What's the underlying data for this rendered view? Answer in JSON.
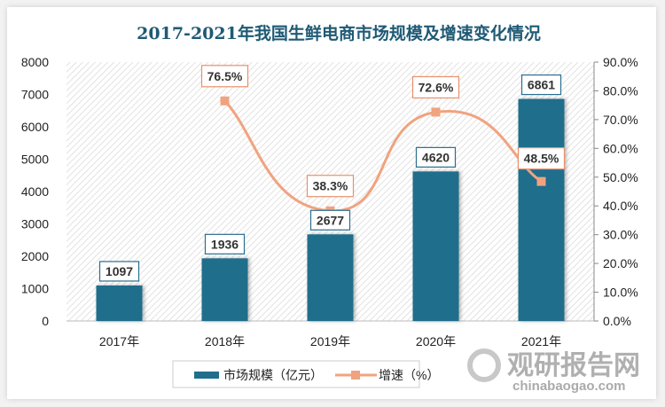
{
  "chart_data": {
    "type": "bar",
    "title": "2017-2021年我国生鲜电商市场规模及增速变化情况",
    "categories": [
      "2017年",
      "2018年",
      "2019年",
      "2020年",
      "2021年"
    ],
    "series": [
      {
        "name": "市场规模（亿元）",
        "type": "bar",
        "axis": "left",
        "values": [
          1097,
          1936,
          2677,
          4620,
          6861
        ],
        "labels": [
          "1097",
          "1936",
          "2677",
          "4620",
          "6861"
        ],
        "color": "#1f6e8c"
      },
      {
        "name": "增速（%）",
        "type": "line",
        "axis": "right",
        "smooth": true,
        "values": [
          null,
          76.5,
          38.3,
          72.6,
          48.5
        ],
        "labels": [
          "",
          "76.5%",
          "38.3%",
          "72.6%",
          "48.5%"
        ],
        "color": "#f0a37f"
      }
    ],
    "ylim": [
      0,
      8000
    ],
    "yticks": [
      "0",
      "1000",
      "2000",
      "3000",
      "4000",
      "5000",
      "6000",
      "7000",
      "8000"
    ],
    "y2lim": [
      0,
      90
    ],
    "y2ticks": [
      "0.0%",
      "10.0%",
      "20.0%",
      "30.0%",
      "40.0%",
      "50.0%",
      "60.0%",
      "70.0%",
      "80.0%",
      "90.0%"
    ],
    "legend": "bottom",
    "grid": false
  },
  "watermark": {
    "name": "观研报告网",
    "url": "chinabaogao.com"
  }
}
